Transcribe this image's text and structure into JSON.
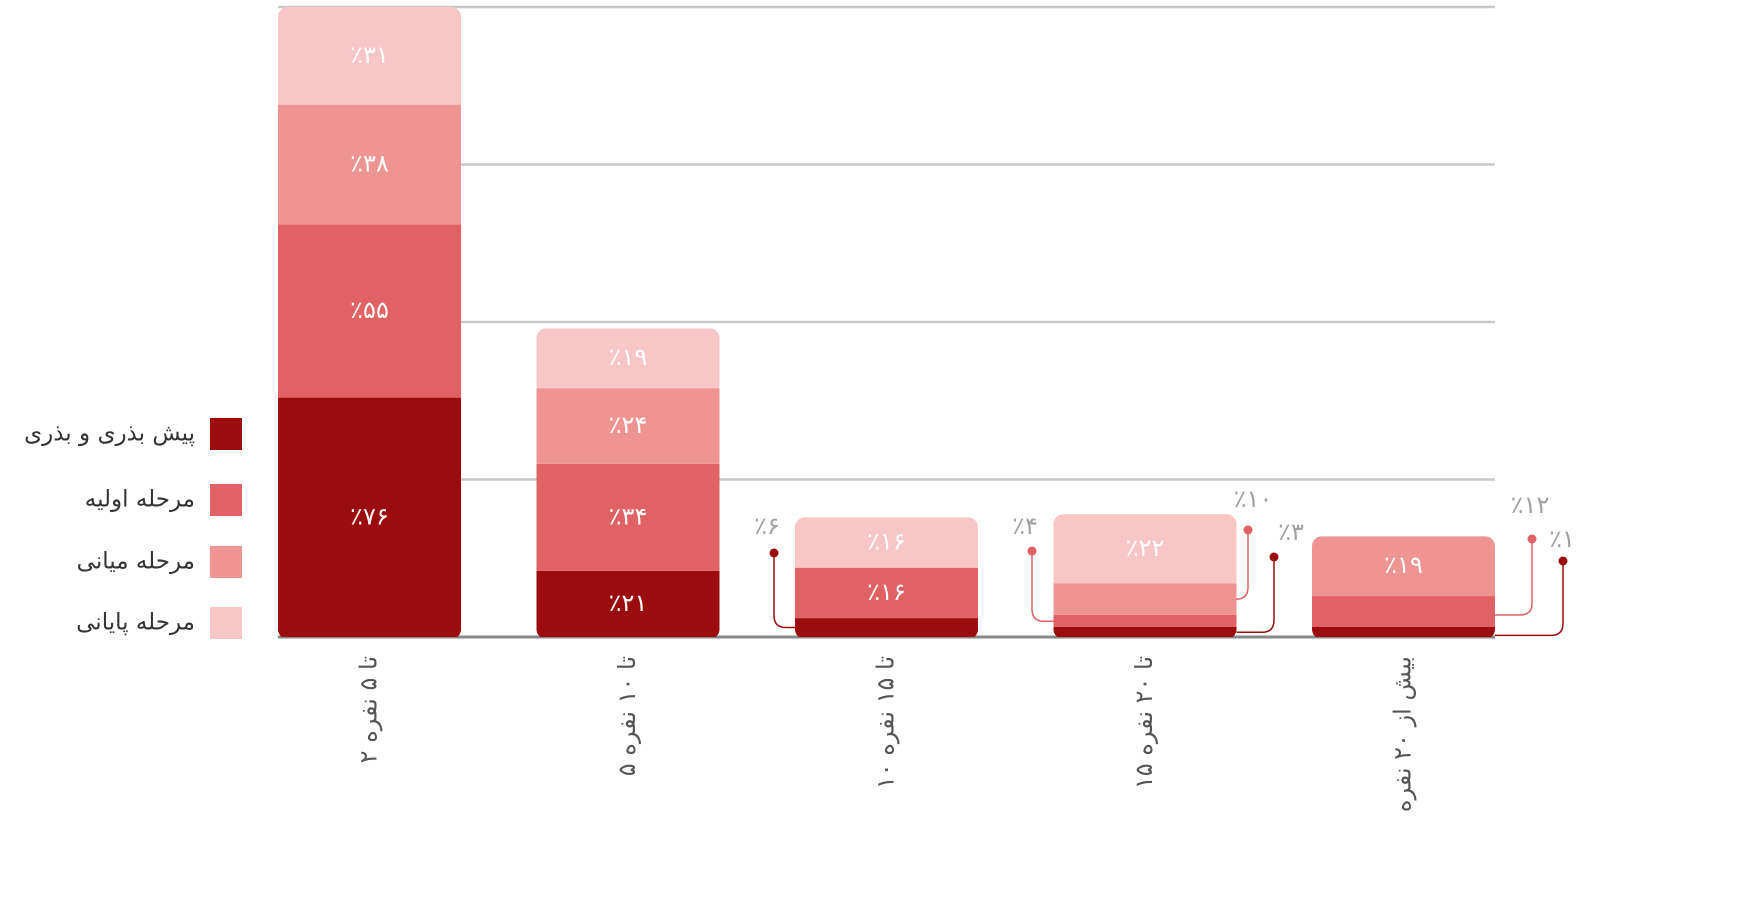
{
  "chart_data": {
    "type": "stacked_bar",
    "categories": [
      "۲ تا ۵ نفره",
      "۵ تا ۱۰ نفره",
      "۱۰ تا ۱۵ نفره",
      "۱۵ تا ۲۰ نفره",
      "بیش از ۲۰ نفره"
    ],
    "series": [
      {
        "name": "پیش بذری و بذری",
        "color": "#9b0c0e",
        "values": [
          76,
          21,
          6,
          3,
          1
        ],
        "value_labels": [
          "٪۷۶",
          "٪۲۱",
          "٪۶",
          "٪۳",
          "٪۱"
        ]
      },
      {
        "name": "مرحله اولیه",
        "color": "#e06264",
        "values": [
          55,
          34,
          16,
          4,
          12
        ],
        "value_labels": [
          "٪۵۵",
          "٪۳۴",
          "٪۱۶",
          "٪۴",
          "٪۱۲"
        ]
      },
      {
        "name": "مرحله میانی",
        "color": "#ee9594",
        "values": [
          38,
          24,
          null,
          10,
          19
        ],
        "value_labels": [
          "٪۳۸",
          "٪۲۴",
          null,
          "٪۱۰",
          "٪۱۹"
        ]
      },
      {
        "name": "مرحله پایانی",
        "color": "#f9c6c6",
        "values": [
          31,
          19,
          16,
          22,
          null
        ],
        "value_labels": [
          "٪۳۱",
          "٪۱۹",
          "٪۱۶",
          "٪۲۲",
          null
        ]
      }
    ],
    "ylim": [
      0,
      200
    ],
    "yticks": [
      0,
      50,
      100,
      150,
      200
    ],
    "grid": true,
    "legend": "left"
  }
}
